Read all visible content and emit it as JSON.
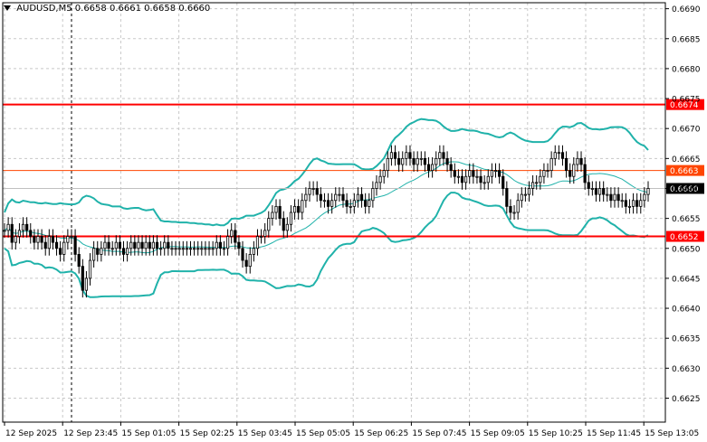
{
  "header": {
    "symbol": "AUDUSD,M5",
    "ohlc": "0.6658 0.6661 0.6658 0.6660"
  },
  "colors": {
    "background": "#ffffff",
    "grid": "#c8c8c8",
    "candle": "#000000",
    "bollinger": "#20b2aa",
    "resistance": "#ff0000",
    "mid_level": "#ff4500",
    "current_price_bg": "#000000"
  },
  "chart_data": {
    "type": "candlestick",
    "y_range": [
      0.6621,
      0.6691
    ],
    "y_ticks": [
      "0.6690",
      "0.6685",
      "0.6680",
      "0.6675",
      "0.6670",
      "0.6665",
      "0.6660",
      "0.6655",
      "0.6650",
      "0.6645",
      "0.6640",
      "0.6635",
      "0.6630",
      "0.6625"
    ],
    "x_ticks": [
      "12 Sep 2025",
      "12 Sep 23:45",
      "15 Sep 01:05",
      "15 Sep 02:25",
      "15 Sep 03:45",
      "15 Sep 05:05",
      "15 Sep 06:25",
      "15 Sep 07:45",
      "15 Sep 09:05",
      "15 Sep 10:25",
      "15 Sep 11:45",
      "15 Sep 13:05"
    ],
    "grid": true,
    "horizontal_levels": [
      {
        "label": "0.6674",
        "value": 0.6674,
        "color": "#ff0000"
      },
      {
        "label": "0.6663",
        "value": 0.6663,
        "color": "#ff4500"
      },
      {
        "label": "0.6652",
        "value": 0.6652,
        "color": "#ff0000"
      }
    ],
    "current_price": {
      "label": "0.6660",
      "value": 0.666
    },
    "candles_close": [
      0.6653,
      0.6654,
      0.6651,
      0.6652,
      0.6653,
      0.6654,
      0.6653,
      0.6652,
      0.6651,
      0.6652,
      0.6651,
      0.665,
      0.6652,
      0.6651,
      0.665,
      0.6649,
      0.6651,
      0.6652,
      0.6652,
      0.6649,
      0.6647,
      0.6643,
      0.6645,
      0.6648,
      0.665,
      0.6649,
      0.665,
      0.6651,
      0.665,
      0.665,
      0.6651,
      0.665,
      0.6649,
      0.665,
      0.6651,
      0.665,
      0.6651,
      0.665,
      0.6651,
      0.665,
      0.6651,
      0.665,
      0.665,
      0.6651,
      0.665,
      0.665,
      0.665,
      0.665,
      0.665,
      0.665,
      0.665,
      0.665,
      0.665,
      0.665,
      0.665,
      0.665,
      0.665,
      0.6651,
      0.665,
      0.665,
      0.6652,
      0.6653,
      0.6651,
      0.665,
      0.6648,
      0.6647,
      0.6649,
      0.665,
      0.6652,
      0.6652,
      0.6653,
      0.6655,
      0.6656,
      0.6657,
      0.6655,
      0.6653,
      0.6654,
      0.6656,
      0.6657,
      0.6656,
      0.6658,
      0.6659,
      0.666,
      0.666,
      0.6659,
      0.6658,
      0.6658,
      0.6657,
      0.6658,
      0.6659,
      0.6659,
      0.6658,
      0.6657,
      0.6657,
      0.6658,
      0.6659,
      0.6658,
      0.6657,
      0.6658,
      0.666,
      0.6661,
      0.6662,
      0.6663,
      0.6665,
      0.6666,
      0.6665,
      0.6664,
      0.6665,
      0.6666,
      0.6665,
      0.6664,
      0.6665,
      0.6665,
      0.6664,
      0.6663,
      0.6664,
      0.6665,
      0.6666,
      0.6665,
      0.6664,
      0.6663,
      0.6662,
      0.6662,
      0.6661,
      0.6662,
      0.6663,
      0.6662,
      0.6662,
      0.6661,
      0.6661,
      0.6662,
      0.6663,
      0.6663,
      0.6662,
      0.666,
      0.6657,
      0.6656,
      0.6656,
      0.6658,
      0.6659,
      0.6659,
      0.666,
      0.6661,
      0.6661,
      0.6662,
      0.6663,
      0.6663,
      0.6665,
      0.6666,
      0.6666,
      0.6665,
      0.6663,
      0.6662,
      0.6664,
      0.6665,
      0.6664,
      0.6661,
      0.666,
      0.666,
      0.6659,
      0.666,
      0.6659,
      0.6659,
      0.6658,
      0.6659,
      0.6658,
      0.6658,
      0.6657,
      0.6657,
      0.6658,
      0.6657,
      0.6658,
      0.6659,
      0.666
    ]
  }
}
